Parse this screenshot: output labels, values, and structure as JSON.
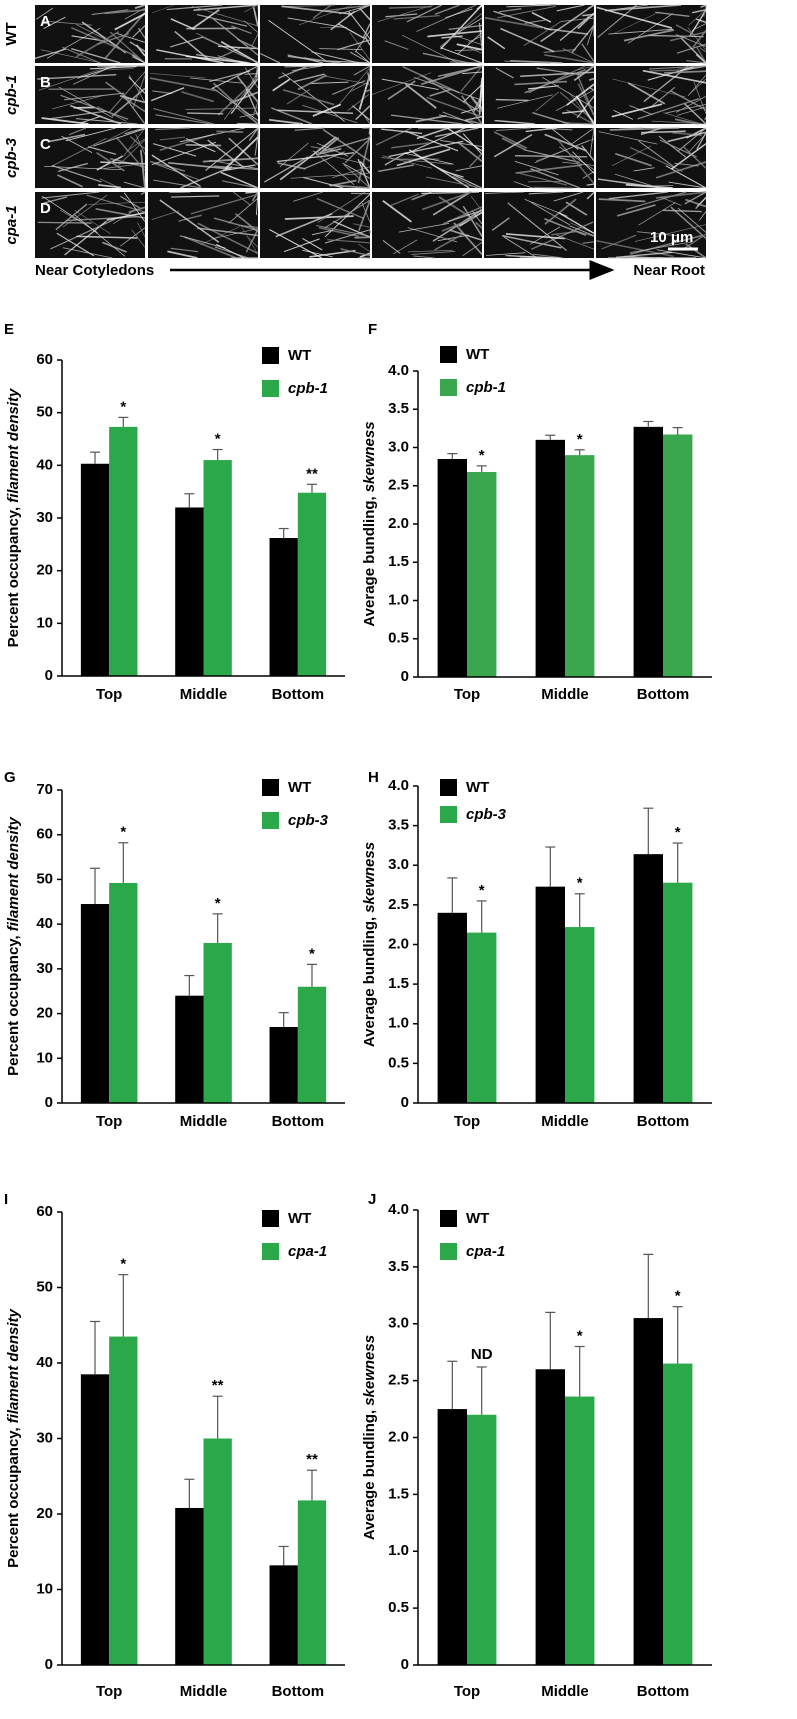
{
  "micrographs": {
    "panels": [
      "A",
      "B",
      "C",
      "D"
    ],
    "rows": [
      "WT",
      "cpb-1",
      "cpb-3",
      "cpa-1"
    ],
    "scale_bar": "10 μm",
    "axis_start": "Near Cotyledons",
    "axis_end": "Near Root"
  },
  "chart_data": [
    {
      "type": "bar",
      "panel": "E",
      "ylabel": "Percent occupancy,",
      "ylabel_italic": "filament density",
      "categories": [
        "Top",
        "Middle",
        "Bottom"
      ],
      "series": [
        {
          "name": "WT",
          "color": "#000000",
          "values": [
            40.3,
            32,
            26.2
          ],
          "errors": [
            2.2,
            2.6,
            1.8
          ]
        },
        {
          "name": "cpb-1",
          "color": "#2aa84a",
          "values": [
            47.3,
            41,
            34.8
          ],
          "errors": [
            1.8,
            2,
            1.6
          ],
          "annotations": [
            "*",
            "*",
            "**"
          ]
        }
      ],
      "ylim": [
        0,
        60
      ],
      "yticks": [
        0,
        10,
        20,
        30,
        40,
        50,
        60
      ]
    },
    {
      "type": "bar",
      "panel": "F",
      "ylabel": "Average bundling,",
      "ylabel_italic": "skewness",
      "categories": [
        "Top",
        "Middle",
        "Bottom"
      ],
      "series": [
        {
          "name": "WT",
          "color": "#000000",
          "values": [
            2.85,
            3.1,
            3.27
          ],
          "errors": [
            0.07,
            0.06,
            0.07
          ]
        },
        {
          "name": "cpb-1",
          "color": "#3aa64e",
          "values": [
            2.68,
            2.9,
            3.17
          ],
          "errors": [
            0.08,
            0.07,
            0.09
          ],
          "annotations": [
            "*",
            "*",
            null
          ]
        }
      ],
      "ylim": [
        0,
        4
      ],
      "yticks": [
        0,
        0.5,
        {
          "value": 1,
          "label": "1.0"
        },
        1.5,
        {
          "value": 2,
          "label": "2.0"
        },
        2.5,
        {
          "value": 3,
          "label": "3.0"
        },
        3.5,
        {
          "value": 4,
          "label": "4.0"
        }
      ]
    },
    {
      "type": "bar",
      "panel": "G",
      "ylabel": "Percent occupancy,",
      "ylabel_italic": "filament density",
      "categories": [
        "Top",
        "Middle",
        "Bottom"
      ],
      "series": [
        {
          "name": "WT",
          "color": "#000000",
          "values": [
            44.5,
            24,
            17
          ],
          "errors": [
            8,
            4.5,
            3.2
          ]
        },
        {
          "name": "cpb-3",
          "color": "#2aa84a",
          "values": [
            49.2,
            35.8,
            26
          ],
          "errors": [
            9,
            6.5,
            5
          ],
          "annotations": [
            "*",
            "*",
            "*"
          ]
        }
      ],
      "ylim": [
        0,
        70
      ],
      "yticks": [
        0,
        10,
        20,
        30,
        40,
        50,
        60,
        70
      ]
    },
    {
      "type": "bar",
      "panel": "H",
      "ylabel": "Average bundling,",
      "ylabel_italic": "skewness",
      "categories": [
        "Top",
        "Middle",
        "Bottom"
      ],
      "series": [
        {
          "name": "WT",
          "color": "#000000",
          "values": [
            2.4,
            2.73,
            3.14
          ],
          "errors": [
            0.44,
            0.5,
            0.58
          ]
        },
        {
          "name": "cpb-3",
          "color": "#2aa84a",
          "values": [
            2.15,
            2.22,
            2.78
          ],
          "errors": [
            0.4,
            0.42,
            0.5
          ],
          "annotations": [
            "*",
            "*",
            "*"
          ]
        }
      ],
      "ylim": [
        0,
        4
      ],
      "yticks": [
        0,
        0.5,
        {
          "value": 1,
          "label": "1.0"
        },
        1.5,
        {
          "value": 2,
          "label": "2.0"
        },
        2.5,
        {
          "value": 3,
          "label": "3.0"
        },
        3.5,
        {
          "value": 4,
          "label": "4.0"
        }
      ]
    },
    {
      "type": "bar",
      "panel": "I",
      "ylabel": "Percent occupancy,",
      "ylabel_italic": "filament density",
      "categories": [
        "Top",
        "Middle",
        "Bottom"
      ],
      "series": [
        {
          "name": "WT",
          "color": "#000000",
          "values": [
            38.5,
            20.8,
            13.2
          ],
          "errors": [
            7,
            3.8,
            2.5
          ]
        },
        {
          "name": "cpa-1",
          "color": "#2aa84a",
          "values": [
            43.5,
            30,
            21.8
          ],
          "errors": [
            8.2,
            5.6,
            4
          ],
          "annotations": [
            "*",
            "**",
            "**"
          ]
        }
      ],
      "ylim": [
        0,
        60
      ],
      "yticks": [
        0,
        10,
        20,
        30,
        40,
        50,
        60
      ]
    },
    {
      "type": "bar",
      "panel": "J",
      "ylabel": "Average bundling,",
      "ylabel_italic": "skewness",
      "categories": [
        "Top",
        "Middle",
        "Bottom"
      ],
      "series": [
        {
          "name": "WT",
          "color": "#000000",
          "values": [
            2.25,
            2.6,
            3.05
          ],
          "errors": [
            0.42,
            0.5,
            0.56
          ]
        },
        {
          "name": "cpa-1",
          "color": "#2aa84a",
          "values": [
            2.2,
            2.36,
            2.65
          ],
          "errors": [
            0.42,
            0.44,
            0.5
          ],
          "annotations": [
            "ND",
            "*",
            "*"
          ]
        }
      ],
      "ylim": [
        0,
        4
      ],
      "yticks": [
        0,
        0.5,
        {
          "value": 1,
          "label": "1.0"
        },
        1.5,
        {
          "value": 2,
          "label": "2.0"
        },
        2.5,
        {
          "value": 3,
          "label": "3.0"
        },
        3.5,
        {
          "value": 4,
          "label": "4.0"
        }
      ]
    }
  ]
}
